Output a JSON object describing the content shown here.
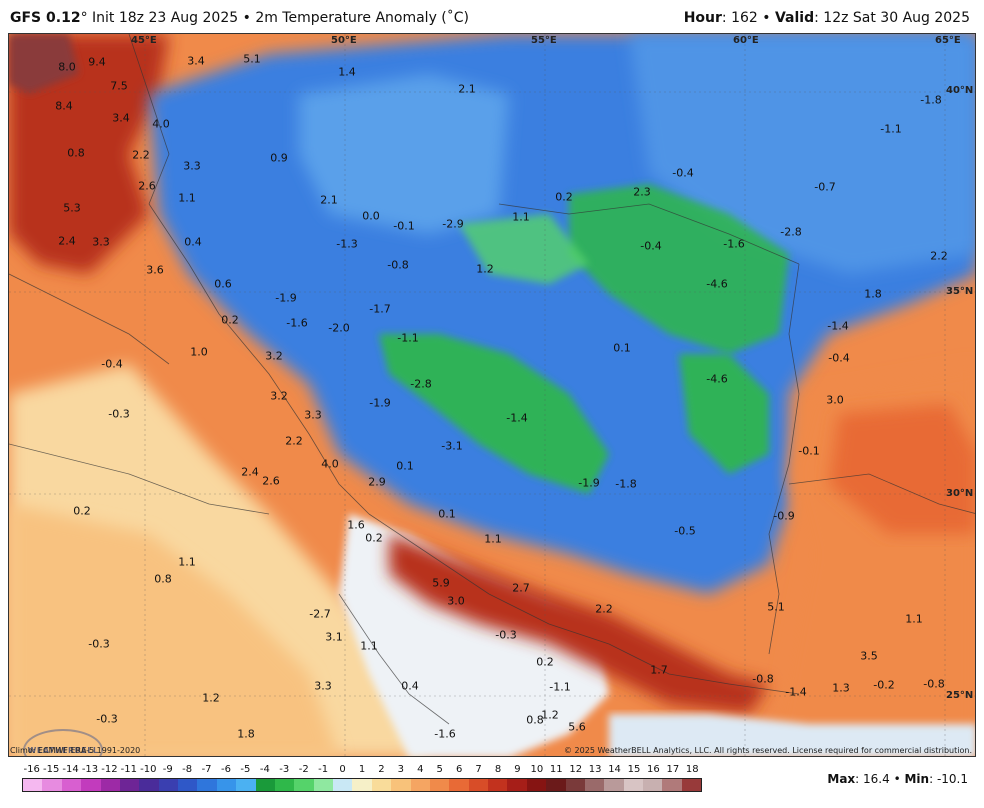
{
  "header": {
    "model": "GFS 0.12",
    "degree": "°",
    "init": "Init 18z 23 Aug 2025",
    "bullet": "•",
    "product": "2m Temperature Anomaly (˚C)",
    "hour_label": "Hour",
    "hour_value": ": 162",
    "valid_label": "Valid",
    "valid_value": ": 12z Sat 30 Aug 2025"
  },
  "grid_labels": {
    "lon_45": "45°E",
    "lon_50": "50°E",
    "lon_55": "55°E",
    "lon_60": "60°E",
    "lon_65": "65°E",
    "lat_40": "40°N",
    "lat_35": "35°N",
    "lat_30": "30°N",
    "lat_25": "25°N"
  },
  "anomaly_values": [
    "8.0",
    "9.4",
    "7.5",
    "8.4",
    "3.4",
    "4.0",
    "5.1",
    "3.4",
    "2.1",
    "1.4",
    "-1.8",
    "-1.1",
    "0.8",
    "2.2",
    "3.3",
    "0.9",
    "-0.4",
    "-0.7",
    "2.6",
    "1.1",
    "5.3",
    "2.1",
    "0.0",
    "-0.1",
    "-2.9",
    "1.1",
    "0.2",
    "2.3",
    "-2.8",
    "2.4",
    "3.3",
    "0.4",
    "-1.3",
    "-0.8",
    "1.2",
    "-0.4",
    "-1.6",
    "3.6",
    "0.6",
    "-4.6",
    "2.2",
    "1.8",
    "-1.9",
    "-1.7",
    "-1.6",
    "0.2",
    "-2.0",
    "-1.4",
    "-1.1",
    "0.1",
    "1.0",
    "3.2",
    "-0.4",
    "-4.6",
    "-0.4",
    "3.0",
    "-0.3",
    "3.2",
    "-2.8",
    "-1.9",
    "3.3",
    "-1.4",
    "2.2",
    "-3.1",
    "4.0",
    "0.1",
    "2.4",
    "-0.1",
    "2.6",
    "2.9",
    "-1.9",
    "-1.8",
    "-0.9",
    "0.2",
    "1.6",
    "0.1",
    "0.2",
    "-0.5",
    "1.1",
    "1.1",
    "0.8",
    "5.9",
    "3.0",
    "2.7",
    "2.2",
    "5.1",
    "1.1",
    "-0.3",
    "-2.7",
    "-0.3",
    "3.1",
    "1.1",
    "0.2",
    "0.4",
    "1.7",
    "3.5",
    "1.2",
    "3.3",
    "1.2",
    "-1.1",
    "-0.8",
    "-1.4",
    "1.3",
    "-0.2",
    "-0.8",
    "-0.3",
    "1.8",
    "-1.6",
    "0.8",
    "5.6"
  ],
  "footer": {
    "climo": "Climo: ECMWF ERA-5 1991-2020",
    "copyright": "© 2025 WeatherBELL Analytics, LLC. All rights reserved. License required for commercial distribution.",
    "logo_text": "WEATHERBELL",
    "max_label": "Max",
    "max_value": ": 16.4",
    "min_label": "Min",
    "min_value": ": -10.1"
  },
  "colorbar": {
    "ticks": [
      "-16",
      "-15",
      "-14",
      "-13",
      "-12",
      "-11",
      "-10",
      "-9",
      "-8",
      "-7",
      "-6",
      "-5",
      "-4",
      "-3",
      "-2",
      "-1",
      "0",
      "1",
      "2",
      "3",
      "4",
      "5",
      "6",
      "7",
      "8",
      "9",
      "10",
      "11",
      "12",
      "13",
      "14",
      "15",
      "16",
      "17",
      "18"
    ],
    "colors": [
      "#f5b8f0",
      "#e78be0",
      "#d85fd0",
      "#c23bbd",
      "#9d2aa6",
      "#6e2596",
      "#4a2c9a",
      "#3a3fb0",
      "#2f58c8",
      "#2f76dc",
      "#3794ea",
      "#4bb1f2",
      "#1a9a3a",
      "#2fb84a",
      "#55d36a",
      "#8fe8a0",
      "#c9e8f5",
      "#f6f0c8",
      "#f9dc9a",
      "#f8c27a",
      "#f5a562",
      "#f08a4a",
      "#e86a36",
      "#d84d28",
      "#c2321e",
      "#a61e18",
      "#861412",
      "#6b1a1a",
      "#7a3a3a",
      "#9a6a6a",
      "#b99a9a",
      "#d8c4c4",
      "#c8b0b0",
      "#b07a7a",
      "#983a3a"
    ]
  },
  "colors": {
    "warm_anomaly": "#f07a3a",
    "cool_anomaly": "#3b7fe0",
    "strong_cool": "#2fb84a",
    "neutral": "#eef3f8",
    "hot": "#a8261a"
  }
}
